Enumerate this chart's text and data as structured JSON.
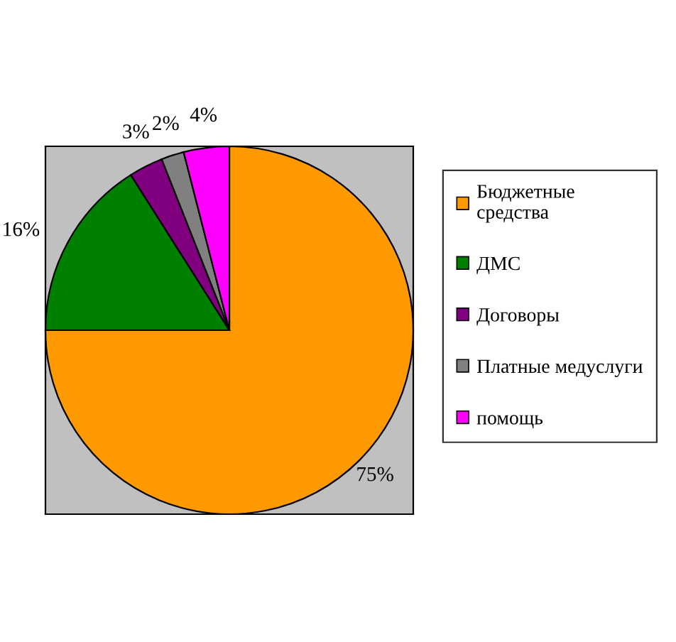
{
  "chart_data": {
    "type": "pie",
    "categories": [
      "Бюджетные\nсредства",
      "ДМС",
      "Договоры",
      "Платные медуслуги",
      "помощь"
    ],
    "values": [
      75,
      16,
      3,
      2,
      4
    ],
    "colors": [
      "#ff9900",
      "#008000",
      "#800080",
      "#808080",
      "#ff00ff"
    ],
    "value_labels": [
      "75%",
      "16%",
      "3%",
      "2%",
      "4%"
    ],
    "legend": "right"
  }
}
